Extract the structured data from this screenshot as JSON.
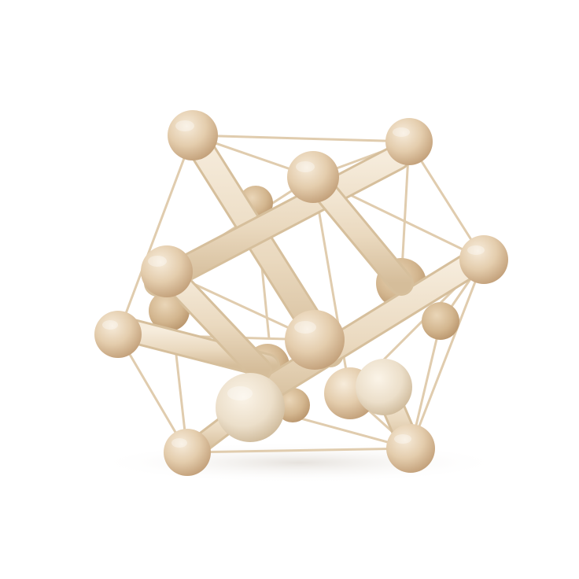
{
  "photo": {
    "subject": "",
    "colors": {
      "background": "#ffffff",
      "wood_light": "#f3e7d3",
      "wood_mid": "#e6d2b5",
      "wood_dark": "#c9ab86",
      "string": "#e2cfb1",
      "shadow": "#ece9e5"
    }
  }
}
